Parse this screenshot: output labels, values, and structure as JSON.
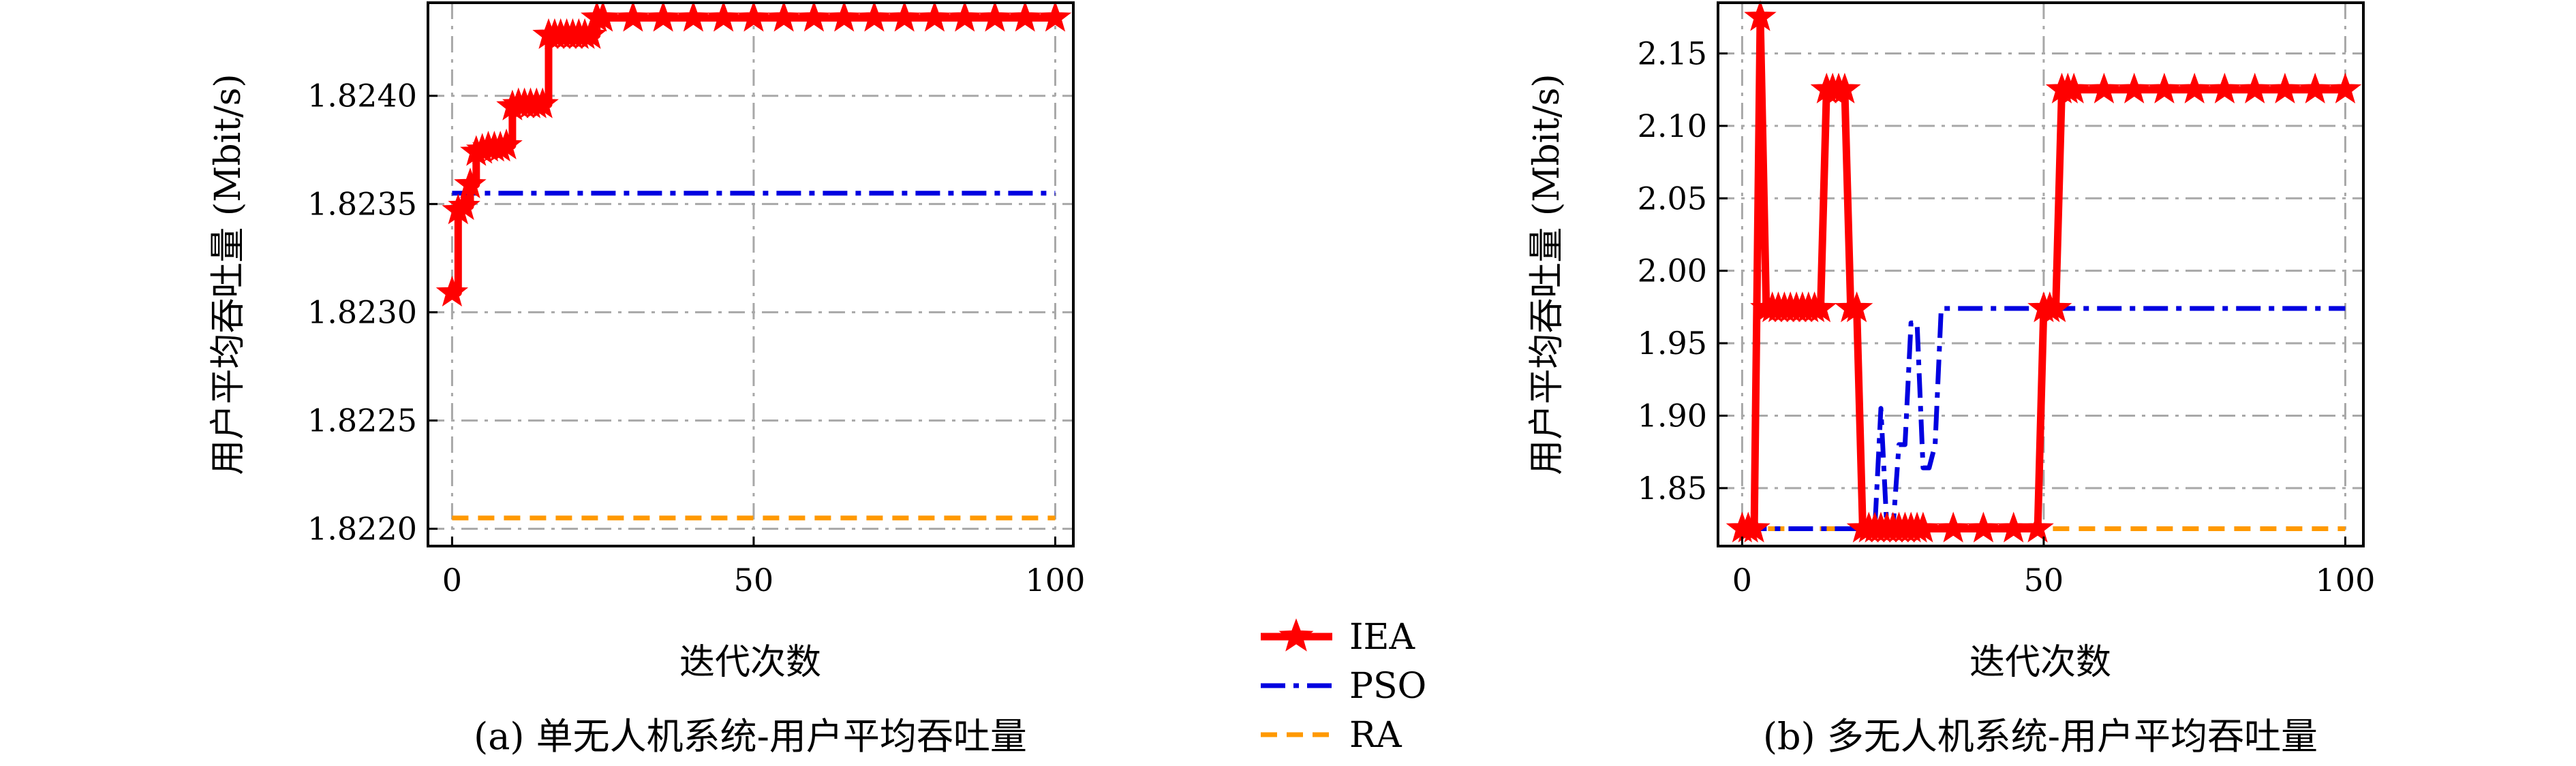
{
  "legend": [
    {
      "name": "IEA",
      "color": "#ff0000",
      "dash": "solid",
      "marker": "star"
    },
    {
      "name": "PSO",
      "color": "#0000e0",
      "dash": "dashdot"
    },
    {
      "name": "RA",
      "color": "#ff9900",
      "dash": "dashed"
    }
  ],
  "chart_data": [
    {
      "type": "line",
      "caption": "(a) 单无人机系统-用户平均吞吐量",
      "xlabel": "迭代次数",
      "ylabel": "用户平均吞吐量 (Mbit/s)",
      "xlim": [
        -4,
        103
      ],
      "ylim": [
        1.82192,
        1.82443
      ],
      "xticks": [
        0,
        50,
        100
      ],
      "xtick_labels": [
        "0",
        "50",
        "100"
      ],
      "yticks": [
        1.822,
        1.8225,
        1.823,
        1.8235,
        1.824
      ],
      "ytick_labels": [
        "1.8220",
        "1.8225",
        "1.8230",
        "1.8235",
        "1.8240"
      ],
      "grid": true,
      "series": [
        {
          "name": "IEA",
          "step": true,
          "marker_every": 1,
          "x": [
            0,
            1,
            2,
            3,
            4,
            5,
            6,
            7,
            8,
            9,
            10,
            11,
            12,
            13,
            14,
            15,
            16,
            17,
            18,
            19,
            20,
            21,
            22,
            23,
            24,
            25,
            30,
            35,
            40,
            45,
            50,
            55,
            60,
            65,
            70,
            75,
            80,
            85,
            90,
            95,
            100
          ],
          "y": [
            1.82309,
            1.82347,
            1.82349,
            1.82359,
            1.82374,
            1.82375,
            1.82376,
            1.82376,
            1.82376,
            1.82377,
            1.82395,
            1.82396,
            1.82396,
            1.82396,
            1.82396,
            1.82396,
            1.82428,
            1.82428,
            1.82428,
            1.82428,
            1.82428,
            1.82428,
            1.82428,
            1.82428,
            1.82436,
            1.82436,
            1.82436,
            1.82436,
            1.82436,
            1.82436,
            1.82436,
            1.82436,
            1.82436,
            1.82436,
            1.82436,
            1.82436,
            1.82436,
            1.82436,
            1.82436,
            1.82436,
            1.82436
          ]
        },
        {
          "name": "PSO",
          "x": [
            0,
            100
          ],
          "y": [
            1.82355,
            1.82355
          ]
        },
        {
          "name": "RA",
          "x": [
            0,
            100
          ],
          "y": [
            1.82205,
            1.82205
          ]
        }
      ]
    },
    {
      "type": "line",
      "caption": "(b) 多无人机系统-用户平均吞吐量",
      "xlabel": "迭代次数",
      "ylabel": "用户平均吞吐量 (Mbit/s)",
      "xlim": [
        -4,
        103
      ],
      "ylim": [
        1.81,
        2.185
      ],
      "xticks": [
        0,
        50,
        100
      ],
      "xtick_labels": [
        "0",
        "50",
        "100"
      ],
      "yticks": [
        1.85,
        1.9,
        1.95,
        2.0,
        2.05,
        2.1,
        2.15
      ],
      "ytick_labels": [
        "1.85",
        "1.90",
        "1.95",
        "2.00",
        "2.05",
        "2.10",
        "2.15"
      ],
      "grid": true,
      "series": [
        {
          "name": "IEA",
          "x": [
            0,
            1,
            2,
            3,
            4,
            5,
            6,
            7,
            8,
            9,
            10,
            11,
            12,
            13,
            14,
            15,
            16,
            17,
            18,
            19,
            20,
            21,
            22,
            23,
            24,
            25,
            26,
            27,
            28,
            29,
            30,
            35,
            40,
            45,
            49,
            50,
            51,
            52,
            53,
            54,
            55,
            60,
            65,
            70,
            75,
            80,
            85,
            90,
            95,
            100
          ],
          "y": [
            1.822,
            1.822,
            1.822,
            2.175,
            1.974,
            1.974,
            1.974,
            1.974,
            1.974,
            1.974,
            1.974,
            1.974,
            1.974,
            1.974,
            2.125,
            2.125,
            2.125,
            2.125,
            1.974,
            1.974,
            1.822,
            1.822,
            1.822,
            1.822,
            1.822,
            1.822,
            1.822,
            1.822,
            1.822,
            1.822,
            1.822,
            1.822,
            1.822,
            1.822,
            1.822,
            1.974,
            1.974,
            1.974,
            2.125,
            2.125,
            2.125,
            2.125,
            2.125,
            2.125,
            2.125,
            2.125,
            2.125,
            2.125,
            2.125,
            2.125
          ]
        },
        {
          "name": "PSO",
          "x": [
            0,
            20,
            21,
            22,
            23,
            24,
            25,
            26,
            27,
            28,
            29,
            30,
            31,
            32,
            33,
            34,
            35,
            40,
            50,
            60,
            70,
            80,
            90,
            100
          ],
          "y": [
            1.822,
            1.822,
            1.822,
            1.822,
            1.905,
            1.822,
            1.822,
            1.88,
            1.88,
            1.964,
            1.964,
            1.864,
            1.864,
            1.88,
            1.974,
            1.974,
            1.974,
            1.974,
            1.974,
            1.974,
            1.974,
            1.974,
            1.974,
            1.974
          ]
        },
        {
          "name": "RA",
          "x": [
            0,
            100
          ],
          "y": [
            1.822,
            1.822
          ]
        }
      ]
    }
  ]
}
